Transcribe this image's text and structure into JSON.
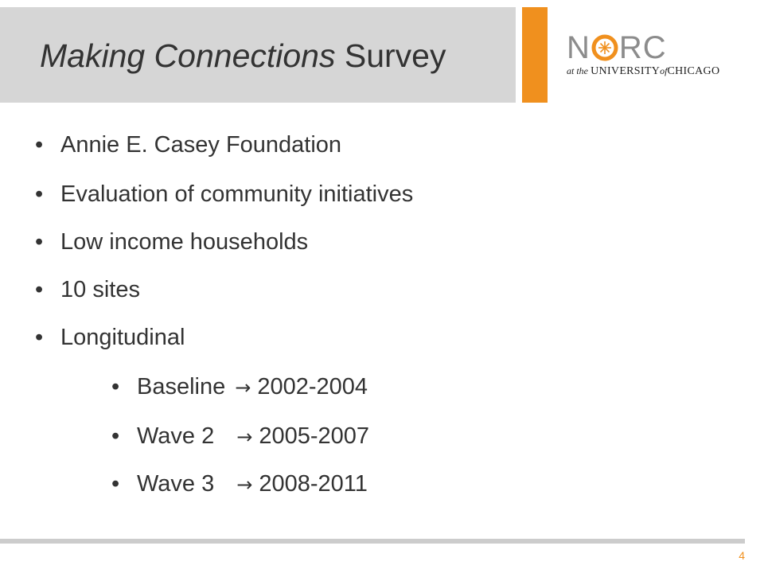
{
  "slide": {
    "title_italic": "Making Connections",
    "title_rest": " Survey",
    "page_number": "4"
  },
  "logo": {
    "n": "N",
    "rc": "RC",
    "at_the": "at the",
    "university": "UNIVERSITY",
    "of": "of",
    "chicago": "CHICAGO",
    "colors": {
      "text": "#8c8c8c",
      "o_ring": "#f0901e"
    }
  },
  "bullets": [
    {
      "text": "Annie E. Casey Foundation"
    },
    {
      "text": "Evaluation of community initiatives"
    },
    {
      "text": "Low income households"
    },
    {
      "text": "10 sites"
    },
    {
      "text": "Longitudinal"
    }
  ],
  "sub_bullets": [
    {
      "label": "Baseline",
      "arrow": "→",
      "range": "2002-2004"
    },
    {
      "label": "Wave 2",
      "arrow": "→",
      "range": "2005-2007"
    },
    {
      "label": "Wave 3",
      "arrow": "→",
      "range": "2008-2011"
    }
  ],
  "bullet_glyph": "•",
  "colors": {
    "accent": "#f0901e",
    "title_bar": "#d6d6d6",
    "text": "#333333"
  }
}
